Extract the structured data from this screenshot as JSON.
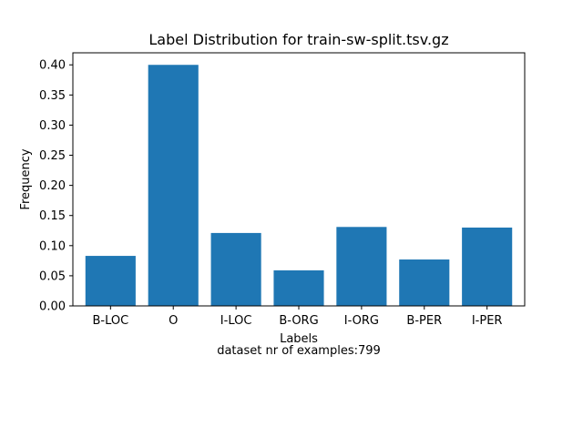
{
  "chart_data": {
    "type": "bar",
    "title": "Label Distribution for train-sw-split.tsv.gz",
    "xlabel": "Labels",
    "ylabel": "Frequency",
    "caption": "dataset nr of examples:799",
    "categories": [
      "B-LOC",
      "O",
      "I-LOC",
      "B-ORG",
      "I-ORG",
      "B-PER",
      "I-PER"
    ],
    "values": [
      0.083,
      0.4,
      0.121,
      0.059,
      0.131,
      0.077,
      0.13
    ],
    "ylim": [
      0,
      0.42
    ],
    "yticks": [
      "0.00",
      "0.05",
      "0.10",
      "0.15",
      "0.20",
      "0.25",
      "0.30",
      "0.35",
      "0.40"
    ],
    "bar_color": "#1f77b4",
    "grid": false
  }
}
